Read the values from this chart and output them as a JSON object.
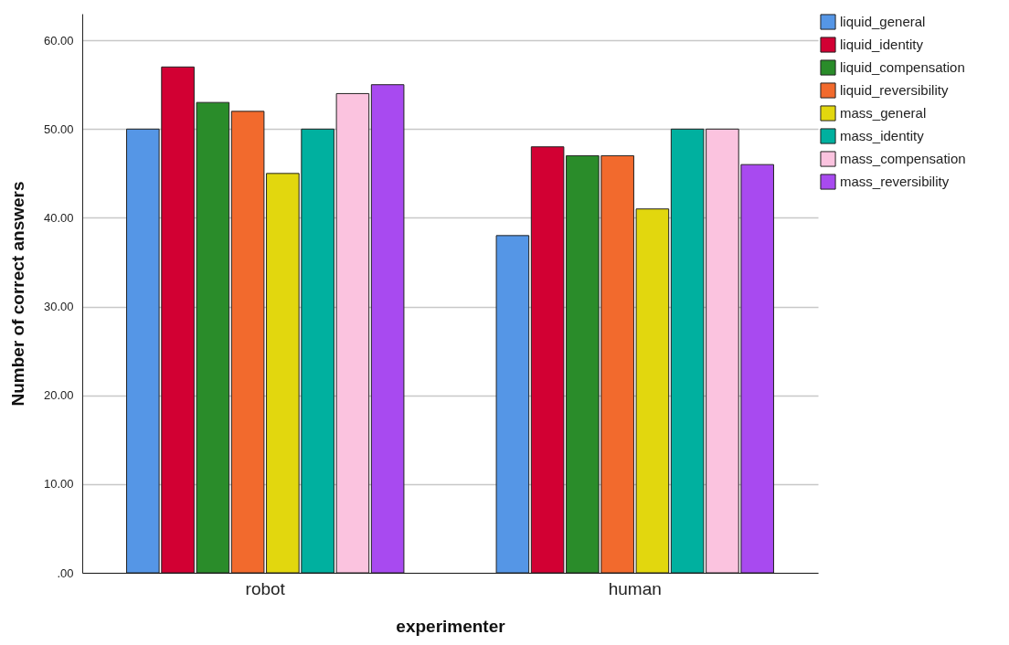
{
  "chart_data": {
    "type": "bar",
    "xlabel": "experimenter",
    "ylabel": "Number of correct answers",
    "categories": [
      "robot",
      "human"
    ],
    "series": [
      {
        "name": "liquid_general",
        "color": "#5596e6",
        "values": [
          50,
          38
        ]
      },
      {
        "name": "liquid_identity",
        "color": "#d20033",
        "values": [
          57,
          48
        ]
      },
      {
        "name": "liquid_compensation",
        "color": "#2a8c2a",
        "values": [
          53,
          47
        ]
      },
      {
        "name": "liquid_reversibility",
        "color": "#f26a2d",
        "values": [
          52,
          47
        ]
      },
      {
        "name": "mass_general",
        "color": "#e2d70e",
        "values": [
          45,
          41
        ]
      },
      {
        "name": "mass_identity",
        "color": "#00b09f",
        "values": [
          50,
          50
        ]
      },
      {
        "name": "mass_compensation",
        "color": "#fbc3df",
        "values": [
          54,
          50
        ]
      },
      {
        "name": "mass_reversibility",
        "color": "#a84af0",
        "values": [
          55,
          46
        ]
      }
    ],
    "ylim": [
      0,
      63
    ],
    "yticks": [
      {
        "value": 0,
        "label": ".00"
      },
      {
        "value": 10,
        "label": "10.00"
      },
      {
        "value": 20,
        "label": "20.00"
      },
      {
        "value": 30,
        "label": "30.00"
      },
      {
        "value": 40,
        "label": "40.00"
      },
      {
        "value": 50,
        "label": "50.00"
      },
      {
        "value": 60,
        "label": "60.00"
      }
    ],
    "grid": "y",
    "legend": "top right"
  }
}
